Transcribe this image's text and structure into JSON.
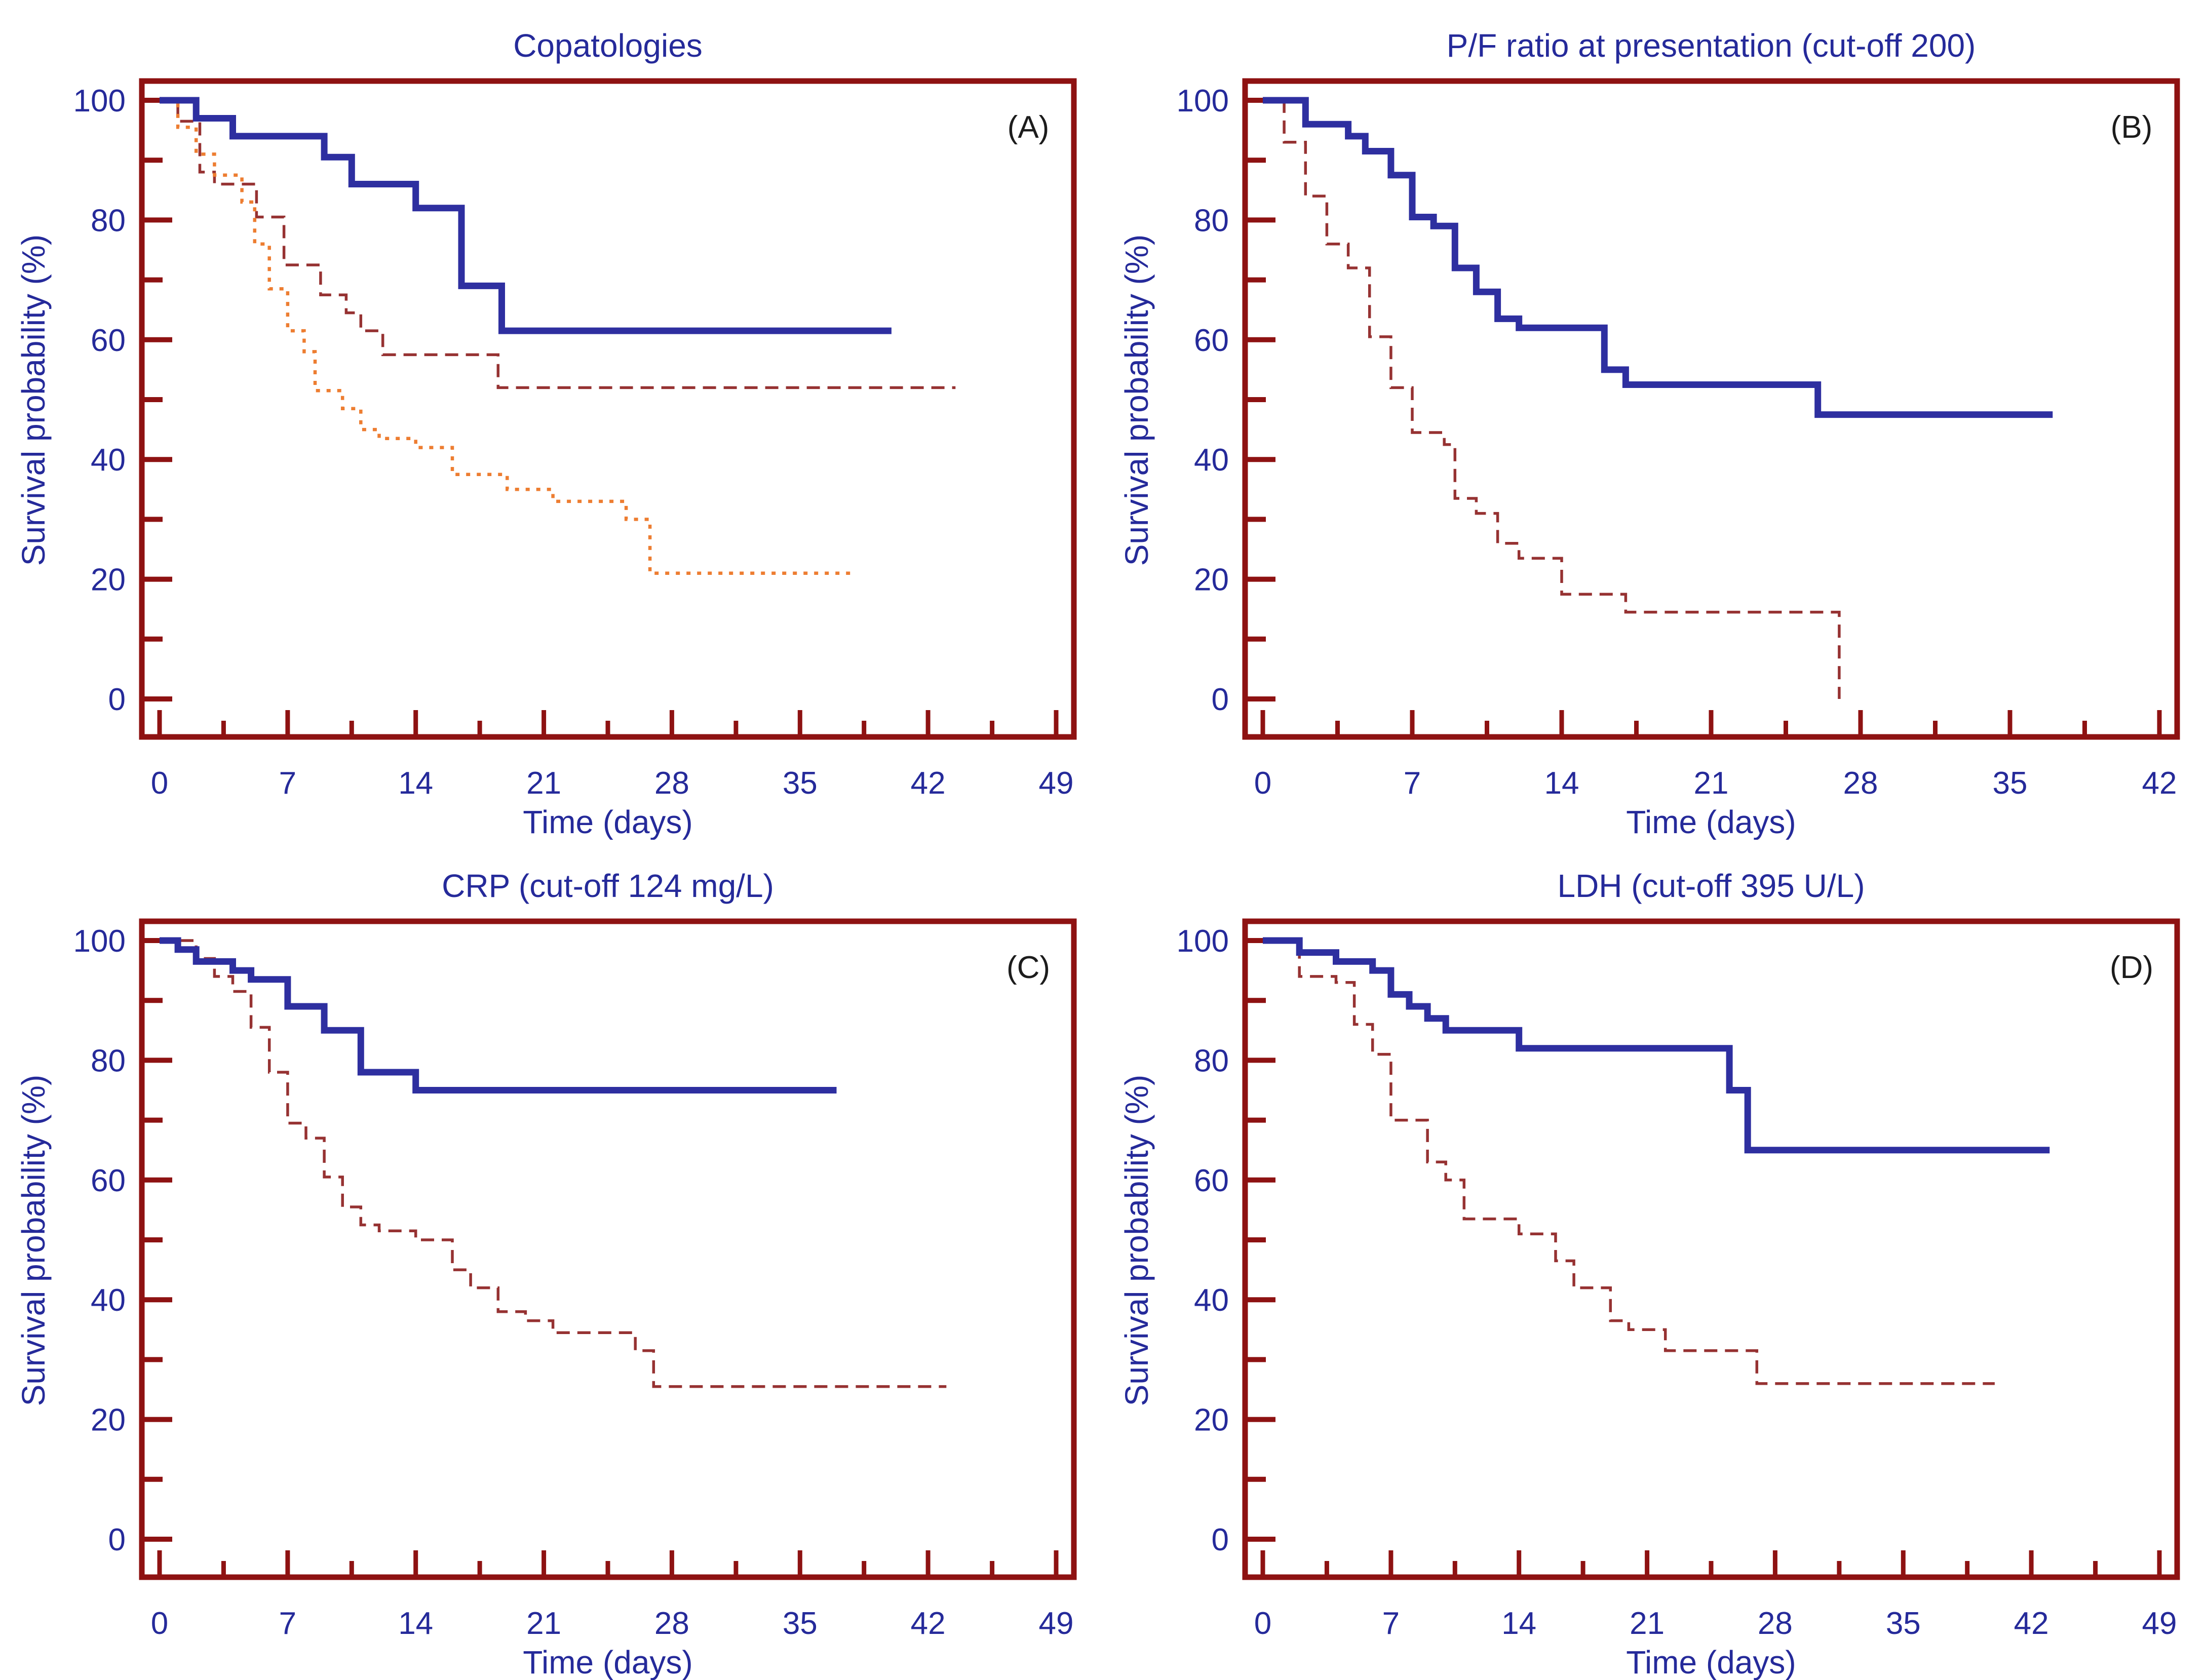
{
  "page": {
    "background": "#ffffff",
    "axis_color": "#8e1212",
    "text_color": "#252a9a",
    "letter_color": "#1c1c1c"
  },
  "chart_data": [
    {
      "type": "line",
      "subtype": "kaplan-meier-step",
      "panel_label": "(A)",
      "title": "Copatologies",
      "xlabel": "Time (days)",
      "ylabel": "Survival probability (%)",
      "xlim": [
        0,
        49
      ],
      "ylim": [
        0,
        100
      ],
      "xticks": [
        0,
        7,
        14,
        21,
        28,
        35,
        42,
        49
      ],
      "yticks": [
        0,
        20,
        40,
        60,
        80,
        100
      ],
      "yticks_minor": [
        10,
        30,
        50,
        70,
        90
      ],
      "grid": false,
      "legend": null,
      "series": [
        {
          "name": "group-2-dashed",
          "style": "dashed",
          "color": "#963232",
          "width": 5.5,
          "points": [
            [
              0,
              100
            ],
            [
              1,
              96.5
            ],
            [
              2.2,
              88
            ],
            [
              3,
              86
            ],
            [
              5.3,
              80.5
            ],
            [
              6.8,
              72.5
            ],
            [
              8.8,
              67.5
            ],
            [
              10.2,
              64.5
            ],
            [
              11,
              61.5
            ],
            [
              12.2,
              57.5
            ],
            [
              18.5,
              52
            ],
            [
              43.5,
              52
            ]
          ]
        },
        {
          "name": "group-3-dotted",
          "style": "dotted",
          "color": "#ed7d31",
          "width": 6.5,
          "points": [
            [
              0,
              100
            ],
            [
              1,
              95.5
            ],
            [
              2,
              91
            ],
            [
              3,
              87.5
            ],
            [
              4.5,
              83
            ],
            [
              5.2,
              76
            ],
            [
              6,
              68.5
            ],
            [
              7,
              61.5
            ],
            [
              7.9,
              58
            ],
            [
              8.5,
              51.5
            ],
            [
              10,
              48.5
            ],
            [
              11,
              45
            ],
            [
              12,
              43.5
            ],
            [
              14,
              42
            ],
            [
              16,
              37.5
            ],
            [
              19,
              35
            ],
            [
              21.5,
              33
            ],
            [
              25.5,
              30
            ],
            [
              26.8,
              21
            ],
            [
              38,
              21
            ]
          ]
        },
        {
          "name": "group-1-solid",
          "style": "solid",
          "color": "#2e2fa0",
          "width": 13,
          "points": [
            [
              0,
              100
            ],
            [
              2,
              97
            ],
            [
              4,
              94
            ],
            [
              9,
              90.5
            ],
            [
              10.5,
              86
            ],
            [
              14,
              82
            ],
            [
              16.5,
              69
            ],
            [
              18.7,
              61.5
            ],
            [
              40,
              61.5
            ]
          ]
        }
      ]
    },
    {
      "type": "line",
      "subtype": "kaplan-meier-step",
      "panel_label": "(B)",
      "title": "P/F ratio at presentation (cut-off 200)",
      "xlabel": "Time (days)",
      "ylabel": "Survival probability (%)",
      "xlim": [
        0,
        42
      ],
      "ylim": [
        0,
        100
      ],
      "xticks": [
        0,
        7,
        14,
        21,
        28,
        35,
        42
      ],
      "yticks": [
        0,
        20,
        40,
        60,
        80,
        100
      ],
      "yticks_minor": [
        10,
        30,
        50,
        70,
        90
      ],
      "grid": false,
      "legend": null,
      "series": [
        {
          "name": "low-ratio-dashed",
          "style": "dashed",
          "color": "#963232",
          "width": 5.5,
          "points": [
            [
              0,
              100
            ],
            [
              1,
              93
            ],
            [
              2,
              84
            ],
            [
              3,
              76
            ],
            [
              4,
              72
            ],
            [
              5,
              60.5
            ],
            [
              6,
              52
            ],
            [
              7,
              44.5
            ],
            [
              8.5,
              42.5
            ],
            [
              9,
              33.5
            ],
            [
              10,
              31
            ],
            [
              11,
              26
            ],
            [
              12,
              23.5
            ],
            [
              14,
              17.5
            ],
            [
              17,
              14.5
            ],
            [
              27,
              0
            ]
          ]
        },
        {
          "name": "high-ratio-solid",
          "style": "solid",
          "color": "#2e2fa0",
          "width": 13,
          "points": [
            [
              0,
              100
            ],
            [
              2,
              96
            ],
            [
              4,
              94
            ],
            [
              4.8,
              91.5
            ],
            [
              6,
              87.5
            ],
            [
              7,
              80.5
            ],
            [
              8,
              79
            ],
            [
              9,
              72
            ],
            [
              10,
              68
            ],
            [
              11,
              63.5
            ],
            [
              12,
              62
            ],
            [
              16,
              55
            ],
            [
              17,
              52.5
            ],
            [
              26,
              47.5
            ],
            [
              37,
              47.5
            ]
          ]
        }
      ]
    },
    {
      "type": "line",
      "subtype": "kaplan-meier-step",
      "panel_label": "(C)",
      "title": "CRP (cut-off 124 mg/L)",
      "xlabel": "Time (days)",
      "ylabel": "Survival probability (%)",
      "xlim": [
        0,
        49
      ],
      "ylim": [
        0,
        100
      ],
      "xticks": [
        0,
        7,
        14,
        21,
        28,
        35,
        42,
        49
      ],
      "yticks": [
        0,
        20,
        40,
        60,
        80,
        100
      ],
      "yticks_minor": [
        10,
        30,
        50,
        70,
        90
      ],
      "grid": false,
      "legend": null,
      "series": [
        {
          "name": "high-crp-dashed",
          "style": "dashed",
          "color": "#963232",
          "width": 5.5,
          "points": [
            [
              0,
              100
            ],
            [
              2,
              97
            ],
            [
              3,
              94
            ],
            [
              4,
              91.5
            ],
            [
              5,
              85.5
            ],
            [
              6,
              78
            ],
            [
              7,
              69.5
            ],
            [
              8,
              67
            ],
            [
              9,
              60.5
            ],
            [
              10,
              55.5
            ],
            [
              11,
              52.5
            ],
            [
              12,
              51.5
            ],
            [
              14,
              50
            ],
            [
              16,
              45
            ],
            [
              17,
              42
            ],
            [
              18.5,
              38
            ],
            [
              20,
              36.5
            ],
            [
              21.5,
              34.5
            ],
            [
              26,
              31.5
            ],
            [
              27,
              25.5
            ],
            [
              43,
              25.5
            ]
          ]
        },
        {
          "name": "low-crp-solid",
          "style": "solid",
          "color": "#2e2fa0",
          "width": 13,
          "points": [
            [
              0,
              100
            ],
            [
              1,
              98.5
            ],
            [
              2,
              96.5
            ],
            [
              4,
              95
            ],
            [
              5,
              93.5
            ],
            [
              7,
              89
            ],
            [
              9,
              85
            ],
            [
              11,
              78
            ],
            [
              14,
              75
            ],
            [
              37,
              75
            ]
          ]
        }
      ]
    },
    {
      "type": "line",
      "subtype": "kaplan-meier-step",
      "panel_label": "(D)",
      "title": "LDH (cut-off 395 U/L)",
      "xlabel": "Time (days)",
      "ylabel": "Survival probability (%)",
      "xlim": [
        0,
        49
      ],
      "ylim": [
        0,
        100
      ],
      "xticks": [
        0,
        7,
        14,
        21,
        28,
        35,
        42,
        49
      ],
      "yticks": [
        0,
        20,
        40,
        60,
        80,
        100
      ],
      "yticks_minor": [
        10,
        30,
        50,
        70,
        90
      ],
      "grid": false,
      "legend": null,
      "series": [
        {
          "name": "high-ldh-dashed",
          "style": "dashed",
          "color": "#963232",
          "width": 5.5,
          "points": [
            [
              0,
              100
            ],
            [
              2,
              94
            ],
            [
              4,
              93
            ],
            [
              5,
              86
            ],
            [
              6,
              81
            ],
            [
              7,
              70
            ],
            [
              9,
              63
            ],
            [
              10,
              60
            ],
            [
              11,
              53.5
            ],
            [
              14,
              51
            ],
            [
              16,
              46.5
            ],
            [
              17,
              42
            ],
            [
              19,
              36.5
            ],
            [
              20,
              35
            ],
            [
              22,
              31.5
            ],
            [
              27,
              26
            ],
            [
              40,
              26
            ]
          ]
        },
        {
          "name": "low-ldh-solid",
          "style": "solid",
          "color": "#2e2fa0",
          "width": 13,
          "points": [
            [
              0,
              100
            ],
            [
              2,
              98
            ],
            [
              4,
              96.5
            ],
            [
              6,
              95
            ],
            [
              7,
              91
            ],
            [
              8,
              89
            ],
            [
              9,
              87
            ],
            [
              10,
              85
            ],
            [
              14,
              82
            ],
            [
              25.5,
              75
            ],
            [
              26.5,
              65
            ],
            [
              43,
              65
            ]
          ]
        }
      ]
    }
  ]
}
